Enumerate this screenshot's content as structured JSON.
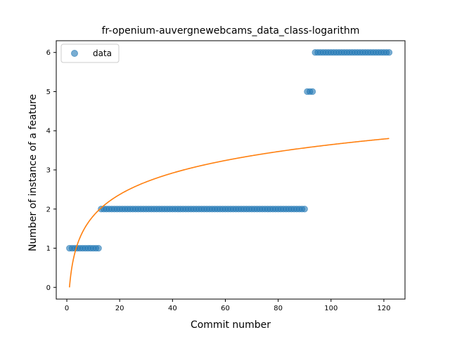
{
  "chart_data": {
    "type": "scatter",
    "title": "fr-openium-auvergnewebcams_data_class-logarithm",
    "xlabel": "Commit number",
    "ylabel": "Number of instance of a feature",
    "xlim": [
      -4,
      128
    ],
    "ylim": [
      -0.3,
      6.3
    ],
    "xticks": [
      0,
      20,
      40,
      60,
      80,
      100,
      120
    ],
    "yticks": [
      0,
      1,
      2,
      3,
      4,
      5,
      6
    ],
    "legend": {
      "placement": "top-left",
      "entries": [
        "data"
      ]
    },
    "grid": false,
    "colors": {
      "data": "#1f77b4",
      "fit": "#ff7f0e"
    },
    "series": [
      {
        "name": "data",
        "kind": "scatter",
        "segments": [
          {
            "x_from": 1,
            "x_to": 12,
            "y": 1
          },
          {
            "x_from": 13,
            "x_to": 90,
            "y": 2
          },
          {
            "x_from": 91,
            "x_to": 93,
            "y": 5
          },
          {
            "x_from": 94,
            "x_to": 122,
            "y": 6
          }
        ]
      },
      {
        "kind": "line",
        "function": "y = 0.7915 * ln(x)",
        "coefficient": 0.7915,
        "x_range": [
          1,
          122
        ]
      }
    ]
  }
}
